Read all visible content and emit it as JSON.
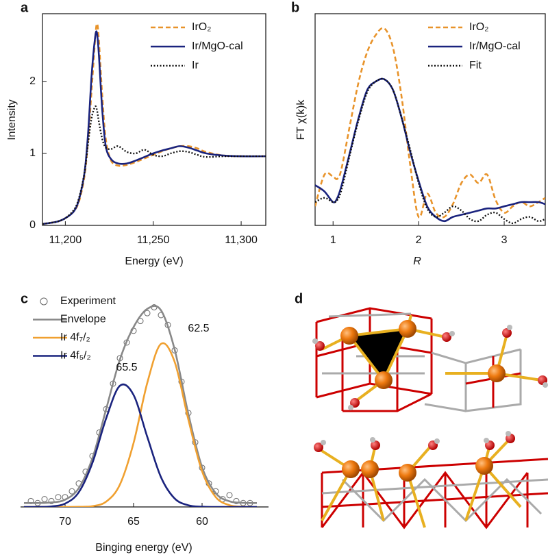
{
  "chart_data": [
    {
      "type": "line",
      "label": "a",
      "xlabel": "Energy (eV)",
      "ylabel": "Intensity",
      "xlim": [
        11187,
        11314
      ],
      "ylim": [
        0,
        2.94
      ],
      "xticks": [
        {
          "value": 11200,
          "label": "11,200"
        },
        {
          "value": 11250,
          "label": "11,250"
        },
        {
          "value": 11300,
          "label": "11,300"
        }
      ],
      "yticks": [
        0,
        1,
        2
      ],
      "x": [
        11187,
        11195,
        11200,
        11205,
        11208,
        11211,
        11213,
        11215,
        11217,
        11218,
        11219,
        11221,
        11223,
        11226,
        11230,
        11235,
        11240,
        11245,
        11250,
        11255,
        11260,
        11265,
        11270,
        11275,
        11280,
        11290,
        11300,
        11314
      ],
      "series": [
        {
          "name": "IrO₂",
          "color": "#e8932a",
          "style": "dashed",
          "values": [
            0.02,
            0.05,
            0.1,
            0.2,
            0.35,
            0.7,
            1.2,
            1.9,
            2.6,
            2.8,
            2.6,
            1.8,
            1.2,
            0.9,
            0.83,
            0.84,
            0.88,
            0.93,
            0.98,
            1.03,
            1.07,
            1.1,
            1.1,
            1.07,
            1.02,
            0.97,
            0.96,
            0.96
          ]
        },
        {
          "name": "Ir/MgO-cal",
          "color": "#1a237e",
          "style": "solid",
          "values": [
            0.02,
            0.05,
            0.1,
            0.2,
            0.38,
            0.75,
            1.3,
            2.1,
            2.62,
            2.67,
            2.4,
            1.6,
            1.1,
            0.92,
            0.86,
            0.86,
            0.9,
            0.95,
            1.0,
            1.04,
            1.07,
            1.1,
            1.08,
            1.04,
            1.0,
            0.97,
            0.96,
            0.96
          ]
        },
        {
          "name": "Ir",
          "color": "#111111",
          "style": "dotted",
          "values": [
            0.02,
            0.05,
            0.1,
            0.22,
            0.4,
            0.75,
            1.15,
            1.5,
            1.65,
            1.6,
            1.45,
            1.2,
            1.08,
            1.06,
            1.1,
            1.02,
            1.0,
            1.05,
            0.98,
            0.96,
            1.0,
            1.03,
            1.02,
            0.98,
            0.95,
            0.96,
            0.96,
            0.96
          ]
        }
      ]
    },
    {
      "type": "line",
      "label": "b",
      "xlabel": "R",
      "ylabel": "FT χ(k)k",
      "xlim": [
        0.79,
        3.48
      ],
      "ylim": [
        0,
        1
      ],
      "xticks": [
        1,
        2,
        3
      ],
      "x": [
        0.79,
        0.9,
        1.0,
        1.05,
        1.1,
        1.2,
        1.3,
        1.4,
        1.5,
        1.6,
        1.7,
        1.8,
        1.9,
        2.0,
        2.1,
        2.2,
        2.3,
        2.4,
        2.5,
        2.6,
        2.7,
        2.8,
        2.9,
        3.0,
        3.1,
        3.2,
        3.3,
        3.4,
        3.48
      ],
      "series": [
        {
          "name": "IrO₂",
          "color": "#e8932a",
          "style": "dashed",
          "values": [
            0.09,
            0.24,
            0.23,
            0.22,
            0.27,
            0.48,
            0.68,
            0.82,
            0.9,
            0.93,
            0.84,
            0.61,
            0.29,
            0.04,
            0.15,
            0.06,
            0.04,
            0.1,
            0.2,
            0.24,
            0.2,
            0.24,
            0.12,
            0.06,
            0.09,
            0.11,
            0.09,
            0.11,
            0.13
          ]
        },
        {
          "name": "Ir/MgO-cal",
          "color": "#1a237e",
          "style": "solid",
          "values": [
            0.19,
            0.16,
            0.11,
            0.13,
            0.19,
            0.35,
            0.51,
            0.64,
            0.68,
            0.69,
            0.64,
            0.51,
            0.35,
            0.21,
            0.09,
            0.04,
            0.02,
            0.04,
            0.05,
            0.06,
            0.07,
            0.08,
            0.08,
            0.09,
            0.1,
            0.11,
            0.11,
            0.11,
            0.1
          ]
        },
        {
          "name": "Fit",
          "color": "#111111",
          "style": "dotted",
          "values": [
            0.11,
            0.13,
            0.11,
            0.12,
            0.17,
            0.34,
            0.5,
            0.63,
            0.68,
            0.69,
            0.64,
            0.51,
            0.36,
            0.2,
            0.08,
            0.04,
            0.06,
            0.09,
            0.07,
            0.03,
            0.02,
            0.05,
            0.06,
            0.03,
            0.01,
            0.03,
            0.04,
            0.02,
            0.03
          ]
        }
      ]
    },
    {
      "type": "line",
      "label": "c",
      "xlabel": "Binging energy (eV)",
      "xlim": [
        73.25,
        55.15
      ],
      "ylim": [
        0,
        1.05
      ],
      "xticks": [
        70,
        65,
        60
      ],
      "annotations": [
        {
          "text": "62.5"
        },
        {
          "text": "65.5"
        }
      ],
      "series": [
        {
          "name": "Experiment",
          "color": "#666666",
          "marker": "circle",
          "x": [
            72.5,
            72,
            71.5,
            71,
            70.5,
            70,
            69.5,
            69,
            68.5,
            68,
            67.5,
            67,
            66.5,
            66,
            65.5,
            65,
            64.5,
            64,
            63.5,
            63,
            62.5,
            62,
            61.5,
            61,
            60.5,
            60,
            59.5,
            59,
            58.5,
            58,
            57.5,
            57,
            56.5
          ],
          "values": [
            0.03,
            0.02,
            0.04,
            0.03,
            0.05,
            0.05,
            0.08,
            0.12,
            0.18,
            0.26,
            0.38,
            0.5,
            0.63,
            0.76,
            0.84,
            0.9,
            0.95,
            0.99,
            1.02,
            0.98,
            0.93,
            0.8,
            0.64,
            0.48,
            0.33,
            0.2,
            0.12,
            0.08,
            0.04,
            0.06,
            0.03,
            0.02,
            0.02
          ]
        },
        {
          "name": "Envelope",
          "color": "#888888",
          "style": "solid",
          "x": [
            73,
            72,
            71,
            70,
            69,
            68,
            67,
            66,
            65,
            64,
            63,
            62,
            61,
            60,
            59,
            58,
            57,
            56
          ],
          "values": [
            0.02,
            0.02,
            0.023,
            0.037,
            0.096,
            0.25,
            0.5,
            0.753,
            0.919,
            1.012,
            1.005,
            0.804,
            0.475,
            0.203,
            0.07,
            0.029,
            0.021,
            0.02
          ]
        },
        {
          "name": "Ir 4f₇/₂",
          "color": "#f0a030",
          "style": "solid",
          "x": [
            73,
            72,
            71,
            70,
            69,
            68,
            67,
            66,
            65,
            64,
            63,
            62,
            61,
            60,
            59,
            58,
            57,
            56
          ],
          "values": [
            0,
            0,
            0,
            0,
            0.0005,
            0.004,
            0.027,
            0.114,
            0.327,
            0.634,
            0.833,
            0.741,
            0.446,
            0.182,
            0.05,
            0.009,
            0.001,
            0
          ]
        },
        {
          "name": "Ir 4f₅/₂",
          "color": "#1a237e",
          "style": "solid",
          "x": [
            73,
            72,
            71,
            70,
            69,
            68,
            67,
            66,
            65,
            64,
            63,
            62,
            61,
            60,
            59,
            58,
            57,
            56
          ],
          "values": [
            0,
            0,
            0.0026,
            0.017,
            0.075,
            0.226,
            0.453,
            0.619,
            0.572,
            0.358,
            0.152,
            0.043,
            0.0085,
            0.001,
            0,
            0,
            0,
            0
          ]
        }
      ]
    }
  ],
  "diagram": {
    "label": "d"
  }
}
